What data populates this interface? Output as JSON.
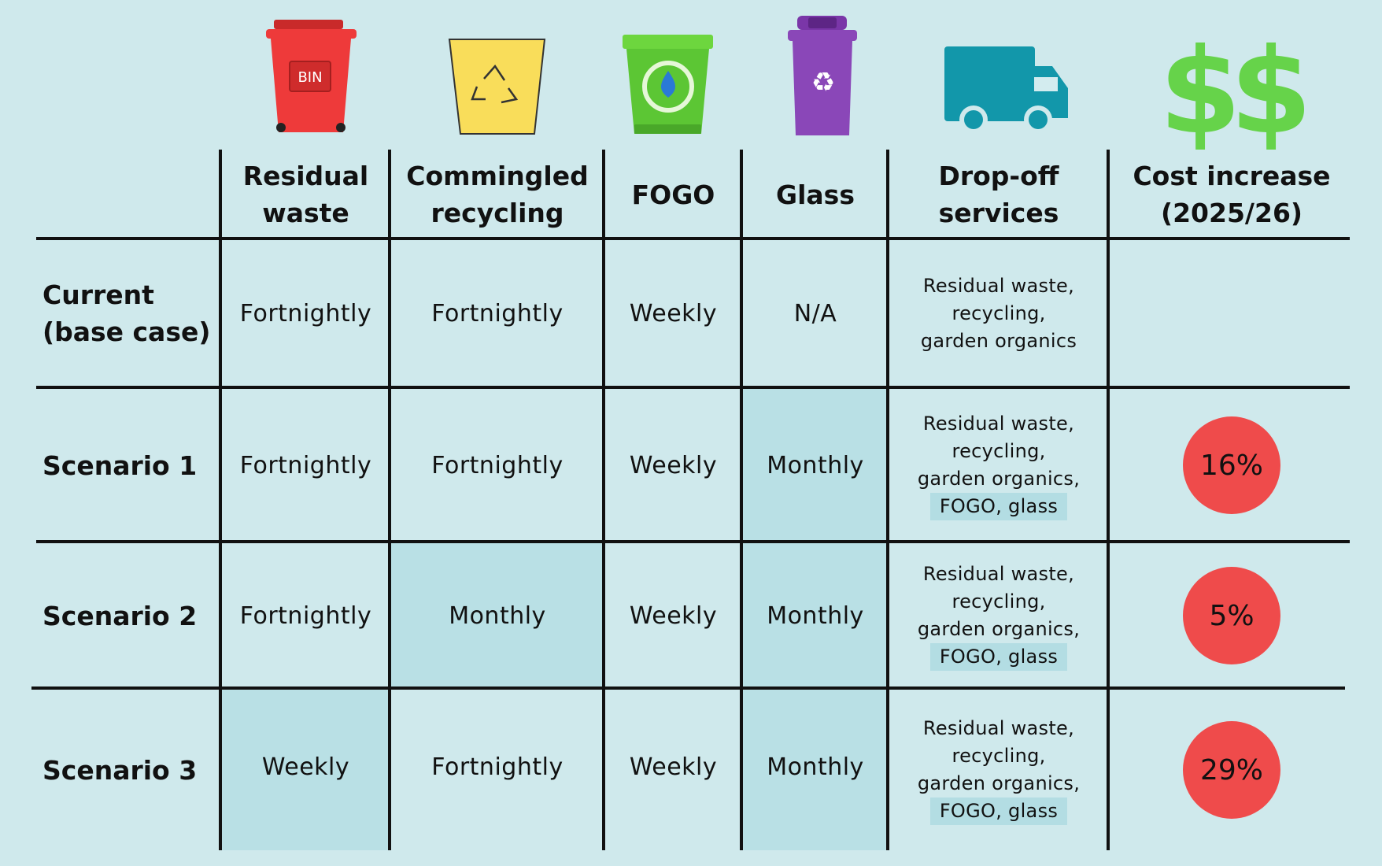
{
  "icons": {
    "residual": "red-bin-icon",
    "commingled": "yellow-recycling-bin-icon",
    "fogo": "green-fogo-bin-icon",
    "glass": "purple-glass-bin-icon",
    "dropoff": "delivery-truck-icon",
    "cost": "dollar-signs-icon"
  },
  "icon_text": {
    "bin_label": "BIN"
  },
  "colors": {
    "background": "#cfe9ec",
    "highlight": "#b9e0e5",
    "badge": "#ef4b4b",
    "bin_red": "#ee3a3a",
    "bin_yellow": "#f9dd5a",
    "bin_green": "#5cc634",
    "bin_purple": "#8a47b8",
    "truck": "#1297aa",
    "dollar": "#66d34a"
  },
  "headers": {
    "residual": [
      "Residual",
      "waste"
    ],
    "commingled": [
      "Commingled",
      "recycling"
    ],
    "fogo": [
      "FOGO"
    ],
    "glass": [
      "Glass"
    ],
    "dropoff": [
      "Drop-off",
      "services"
    ],
    "cost": [
      "Cost increase",
      "(2025/26)"
    ]
  },
  "rows": [
    {
      "label": [
        "Current",
        "(base case)"
      ],
      "residual": "Fortnightly",
      "commingled": "Fortnightly",
      "fogo": "Weekly",
      "glass": "N/A",
      "dropoff": [
        "Residual waste,",
        "recycling,",
        "garden organics"
      ],
      "dropoff_extra": "",
      "cost": ""
    },
    {
      "label": [
        "Scenario 1"
      ],
      "residual": "Fortnightly",
      "commingled": "Fortnightly",
      "fogo": "Weekly",
      "glass": "Monthly",
      "dropoff": [
        "Residual waste,",
        "recycling,",
        "garden organics,"
      ],
      "dropoff_extra": "FOGO, glass",
      "cost": "16%"
    },
    {
      "label": [
        "Scenario 2"
      ],
      "residual": "Fortnightly",
      "commingled": "Monthly",
      "fogo": "Weekly",
      "glass": "Monthly",
      "dropoff": [
        "Residual waste,",
        "recycling,",
        "garden organics,"
      ],
      "dropoff_extra": "FOGO, glass",
      "cost": "5%"
    },
    {
      "label": [
        "Scenario 3"
      ],
      "residual": "Weekly",
      "commingled": "Fortnightly",
      "fogo": "Weekly",
      "glass": "Monthly",
      "dropoff": [
        "Residual waste,",
        "recycling,",
        "garden organics,"
      ],
      "dropoff_extra": "FOGO, glass",
      "cost": "29%"
    }
  ]
}
